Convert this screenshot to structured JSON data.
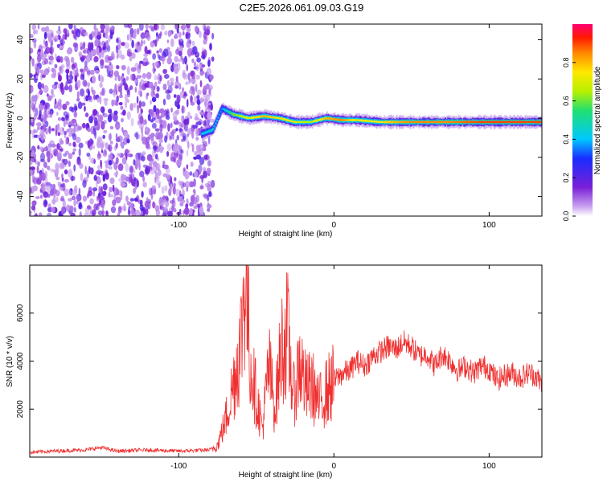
{
  "title": "C2E5.2026.061.09.03.G19",
  "chart_data": [
    {
      "type": "heatmap",
      "name": "spectrogram",
      "xlabel": "Height of straight line (km)",
      "ylabel": "Frequency (Hz)",
      "xlim": [
        -196,
        134
      ],
      "ylim": [
        -50,
        48
      ],
      "xticks": [
        -100,
        0,
        100
      ],
      "xtick_labels": [
        "-100",
        "0",
        "100"
      ],
      "yticks": [
        -40,
        -20,
        0,
        20,
        40
      ],
      "ytick_labels": [
        "-40",
        "-20",
        "0",
        "20",
        "40"
      ],
      "grid": false,
      "colorbar": {
        "label": "Normalized spectral amplitude",
        "range": [
          0,
          1
        ],
        "ticks": [
          0.0,
          0.2,
          0.4,
          0.6,
          0.8
        ],
        "tick_labels": [
          "0.0",
          "0.2",
          "0.4",
          "0.6",
          "0.8"
        ]
      },
      "features": {
        "noise_region_x": [
          -196,
          -78
        ],
        "signal_ridge": {
          "x": [
            -85,
            -78,
            -72,
            -65,
            -55,
            -45,
            -35,
            -25,
            -15,
            -5,
            5,
            15,
            30,
            50,
            75,
            95,
            134
          ],
          "frequency": [
            -8,
            -6,
            5,
            2,
            0,
            1,
            0,
            -2,
            -2,
            0,
            -1,
            -1,
            -2,
            -2,
            -2,
            -2,
            -2
          ],
          "amplitude": [
            0.4,
            0.45,
            0.35,
            0.6,
            0.7,
            0.8,
            0.75,
            0.7,
            0.65,
            0.8,
            0.85,
            0.7,
            0.75,
            0.85,
            0.85,
            0.9,
            0.9
          ]
        }
      }
    },
    {
      "type": "line",
      "name": "snr",
      "xlabel": "Height of straight line (km)",
      "ylabel": "SNR (10 * v/v)",
      "xlim": [
        -196,
        134
      ],
      "ylim": [
        0,
        8000
      ],
      "xticks": [
        -100,
        0,
        100
      ],
      "xtick_labels": [
        "-100",
        "0",
        "100"
      ],
      "yticks": [
        2000,
        4000,
        6000
      ],
      "ytick_labels": [
        "2000",
        "4000",
        "6000"
      ],
      "grid": false,
      "series": [
        {
          "color": "#f03030",
          "x": [
            -196,
            -180,
            -160,
            -150,
            -140,
            -120,
            -100,
            -80,
            -75,
            -70,
            -65,
            -60,
            -57,
            -54,
            -50,
            -46,
            -42,
            -38,
            -34,
            -30,
            -26,
            -22,
            -18,
            -14,
            -10,
            -6,
            -2,
            2,
            6,
            10,
            15,
            20,
            25,
            30,
            35,
            40,
            45,
            50,
            55,
            60,
            65,
            70,
            75,
            80,
            85,
            90,
            95,
            100,
            105,
            110,
            115,
            120,
            125,
            130,
            134
          ],
          "y": [
            200,
            250,
            300,
            400,
            250,
            300,
            250,
            300,
            500,
            1500,
            3000,
            4800,
            7800,
            4000,
            2500,
            1200,
            3800,
            2000,
            4500,
            5200,
            2500,
            4000,
            2800,
            3000,
            2200,
            2600,
            3000,
            3300,
            3500,
            3600,
            4000,
            3800,
            4200,
            4400,
            4600,
            4500,
            4800,
            4600,
            4200,
            4300,
            3800,
            4300,
            4000,
            3600,
            3800,
            3500,
            3800,
            3700,
            3200,
            3400,
            3500,
            3300,
            3500,
            3400,
            3000
          ]
        }
      ]
    }
  ]
}
